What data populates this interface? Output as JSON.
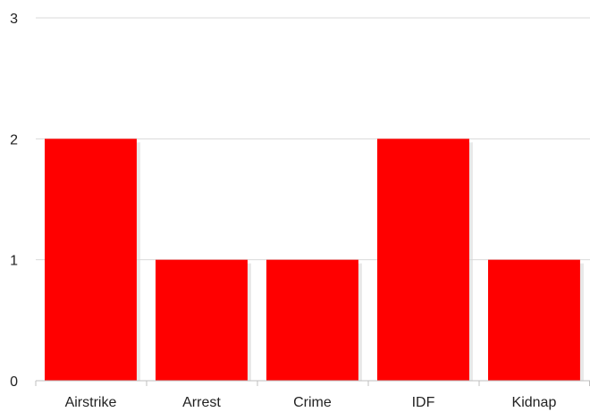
{
  "chart_data": {
    "type": "bar",
    "categories": [
      "Airstrike",
      "Arrest",
      "Crime",
      "IDF",
      "Kidnap"
    ],
    "values": [
      2,
      1,
      1,
      2,
      1
    ],
    "title": "",
    "xlabel": "",
    "ylabel": "",
    "ylim": [
      0,
      3
    ],
    "yticks": [
      0,
      1,
      2,
      3
    ],
    "grid": true,
    "legend": "none",
    "bar_color": "#ff0000",
    "shadow_color": "#d9d9d9"
  }
}
